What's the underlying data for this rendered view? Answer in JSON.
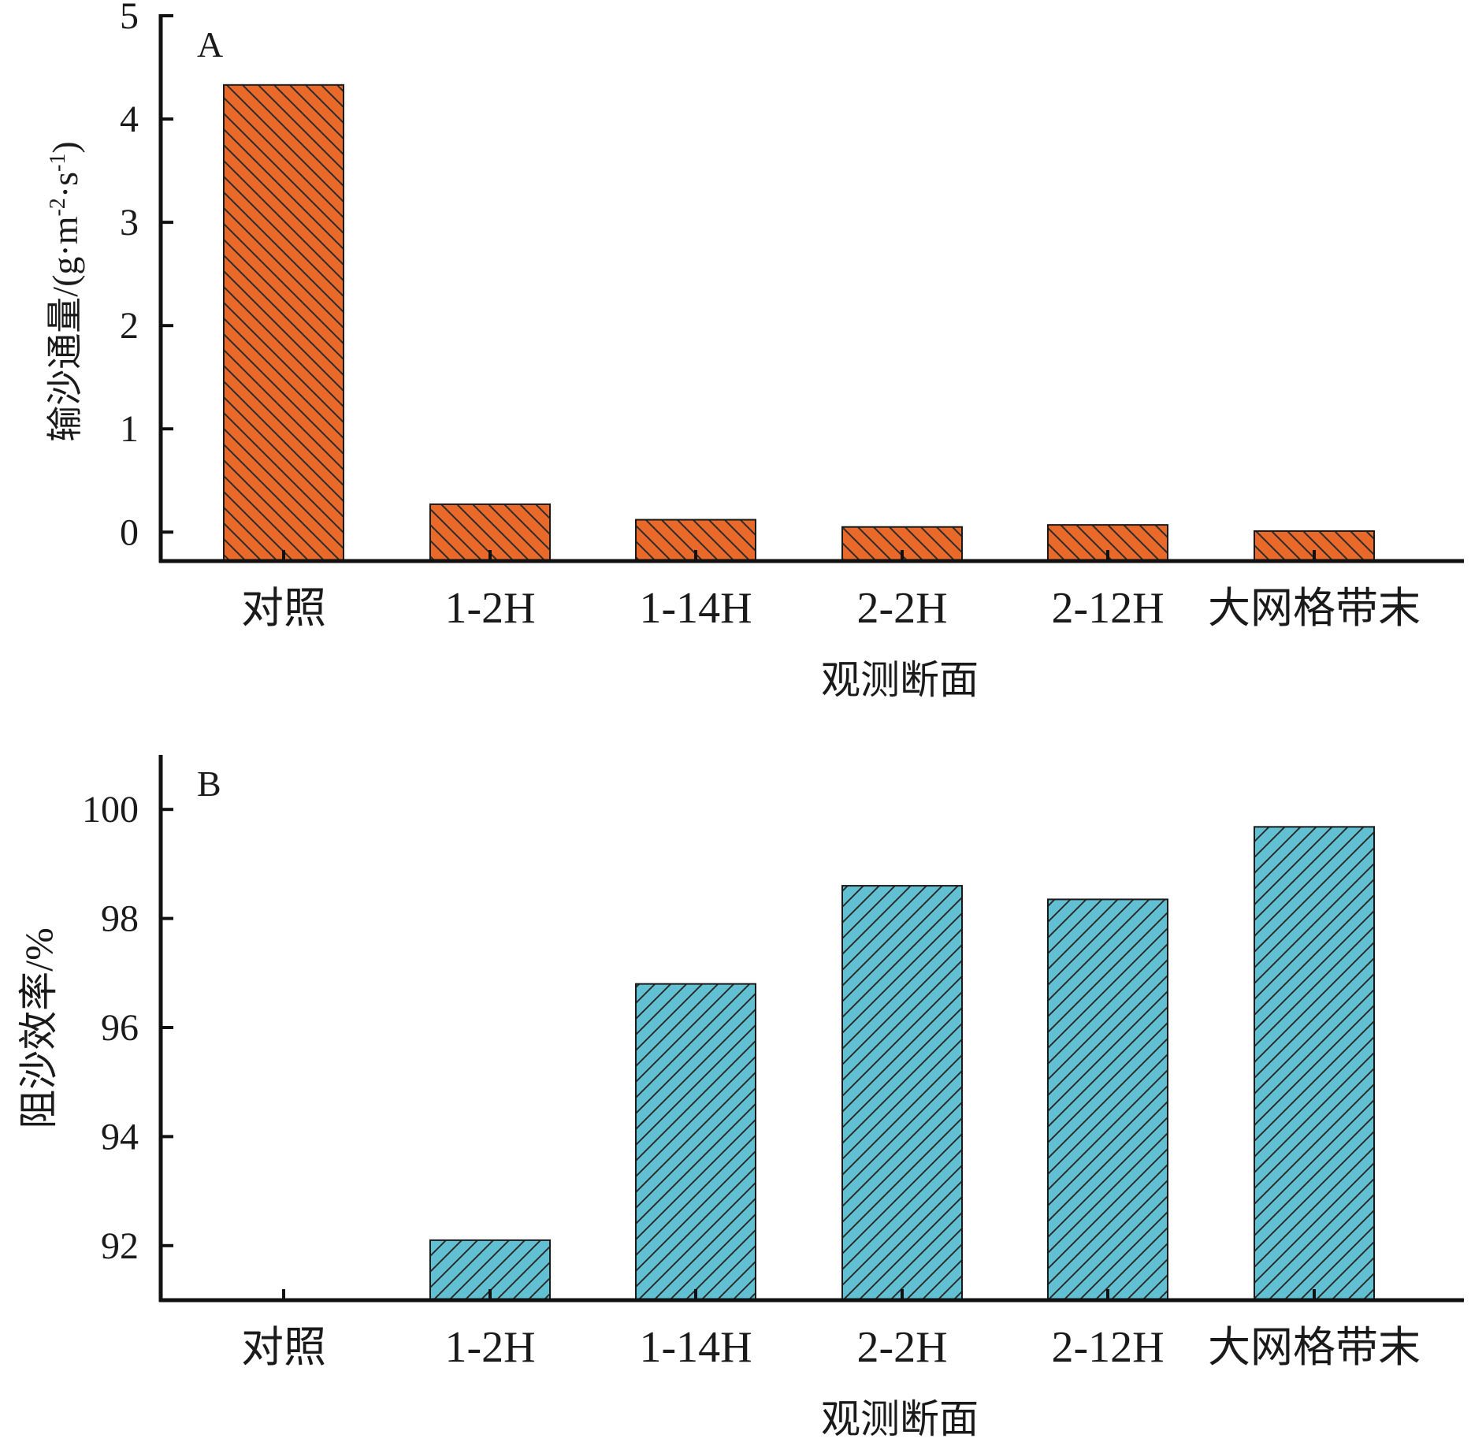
{
  "chart_data": [
    {
      "panel": "A",
      "type": "bar",
      "categories": [
        "对照",
        "1-2H",
        "1-14H",
        "2-2H",
        "2-12H",
        "大网格带末"
      ],
      "values": [
        4.33,
        0.27,
        0.12,
        0.05,
        0.07,
        0.01
      ],
      "ylim": [
        -0.28,
        5
      ],
      "yticks": [
        0,
        1,
        2,
        3,
        4,
        5
      ],
      "xlabel": "观测断面",
      "ylabel": "输沙通量/(g·m-2·s-1)",
      "ylabel_parts": {
        "main": "输沙通量/(g·m",
        "sup1": "-2",
        "mid": "·s",
        "sup2": "-1",
        "end": ")"
      },
      "fill": "#e8692a",
      "hatch": "backslash",
      "grid": false
    },
    {
      "panel": "B",
      "type": "bar",
      "categories": [
        "对照",
        "1-2H",
        "1-14H",
        "2-2H",
        "2-12H",
        "大网格带末"
      ],
      "values": [
        null,
        92.1,
        96.8,
        98.6,
        98.35,
        99.68
      ],
      "ylim": [
        91,
        101
      ],
      "yticks": [
        92,
        94,
        96,
        98,
        100
      ],
      "xlabel": "观测断面",
      "ylabel": "阻沙效率/%",
      "fill": "#62c0d3",
      "hatch": "slash",
      "grid": false
    }
  ]
}
